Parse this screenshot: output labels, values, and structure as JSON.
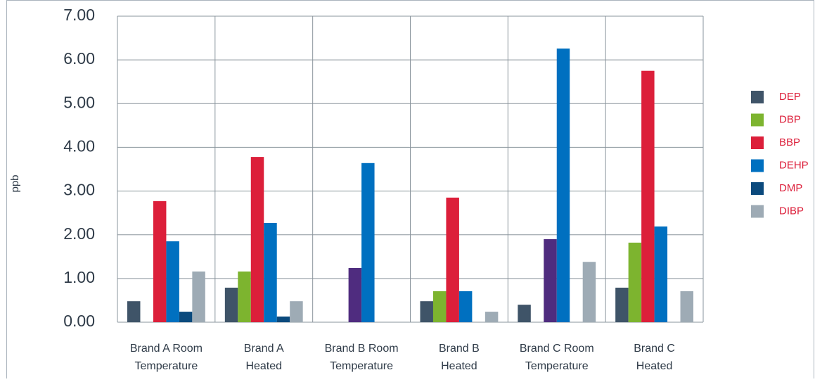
{
  "chart_data": {
    "type": "bar",
    "y_label": "ppb",
    "categories": [
      [
        "Brand A Room",
        "Temperature"
      ],
      [
        "Brand A",
        "Heated"
      ],
      [
        "Brand B Room",
        "Temperature"
      ],
      [
        "Brand B",
        "Heated"
      ],
      [
        "Brand C Room",
        "Temperature"
      ],
      [
        "Brand C",
        "Heated"
      ]
    ],
    "series": [
      {
        "name": "DEP",
        "color": "#3f5468",
        "values": [
          0.48,
          0.79,
          null,
          0.48,
          0.4,
          0.79
        ]
      },
      {
        "name": "DBP",
        "color": "#7db42f",
        "values": [
          null,
          1.16,
          null,
          0.71,
          null,
          1.82
        ]
      },
      {
        "name": "BBP",
        "color": "#dc1f3a",
        "point_colors": [
          "#dc1f3a",
          "#dc1f3a",
          "#4f2c7f",
          "#dc1f3a",
          "#4f2c7f",
          "#dc1f3a"
        ],
        "values": [
          2.77,
          3.78,
          1.24,
          2.85,
          1.9,
          5.75
        ]
      },
      {
        "name": "DEHP",
        "color": "#0070c0",
        "values": [
          1.85,
          2.27,
          3.64,
          0.71,
          6.26,
          2.19
        ]
      },
      {
        "name": "DMP",
        "color": "#0b4a7d",
        "values": [
          0.24,
          0.13,
          null,
          null,
          null,
          null
        ]
      },
      {
        "name": "DIBP",
        "color": "#9eabb5",
        "values": [
          1.16,
          0.48,
          null,
          0.24,
          1.38,
          0.71
        ]
      }
    ],
    "ylim": [
      0,
      7
    ],
    "yticks": [
      {
        "value": 0,
        "label": "0.00"
      },
      {
        "value": 1,
        "label": "1.00"
      },
      {
        "value": 2,
        "label": "2.00"
      },
      {
        "value": 3,
        "label": "3.00"
      },
      {
        "value": 4,
        "label": "4.00"
      },
      {
        "value": 5,
        "label": "5.00"
      },
      {
        "value": 6,
        "label": "6.00"
      },
      {
        "value": 7,
        "label": "7.00"
      }
    ],
    "grid": true,
    "legend": "right"
  }
}
